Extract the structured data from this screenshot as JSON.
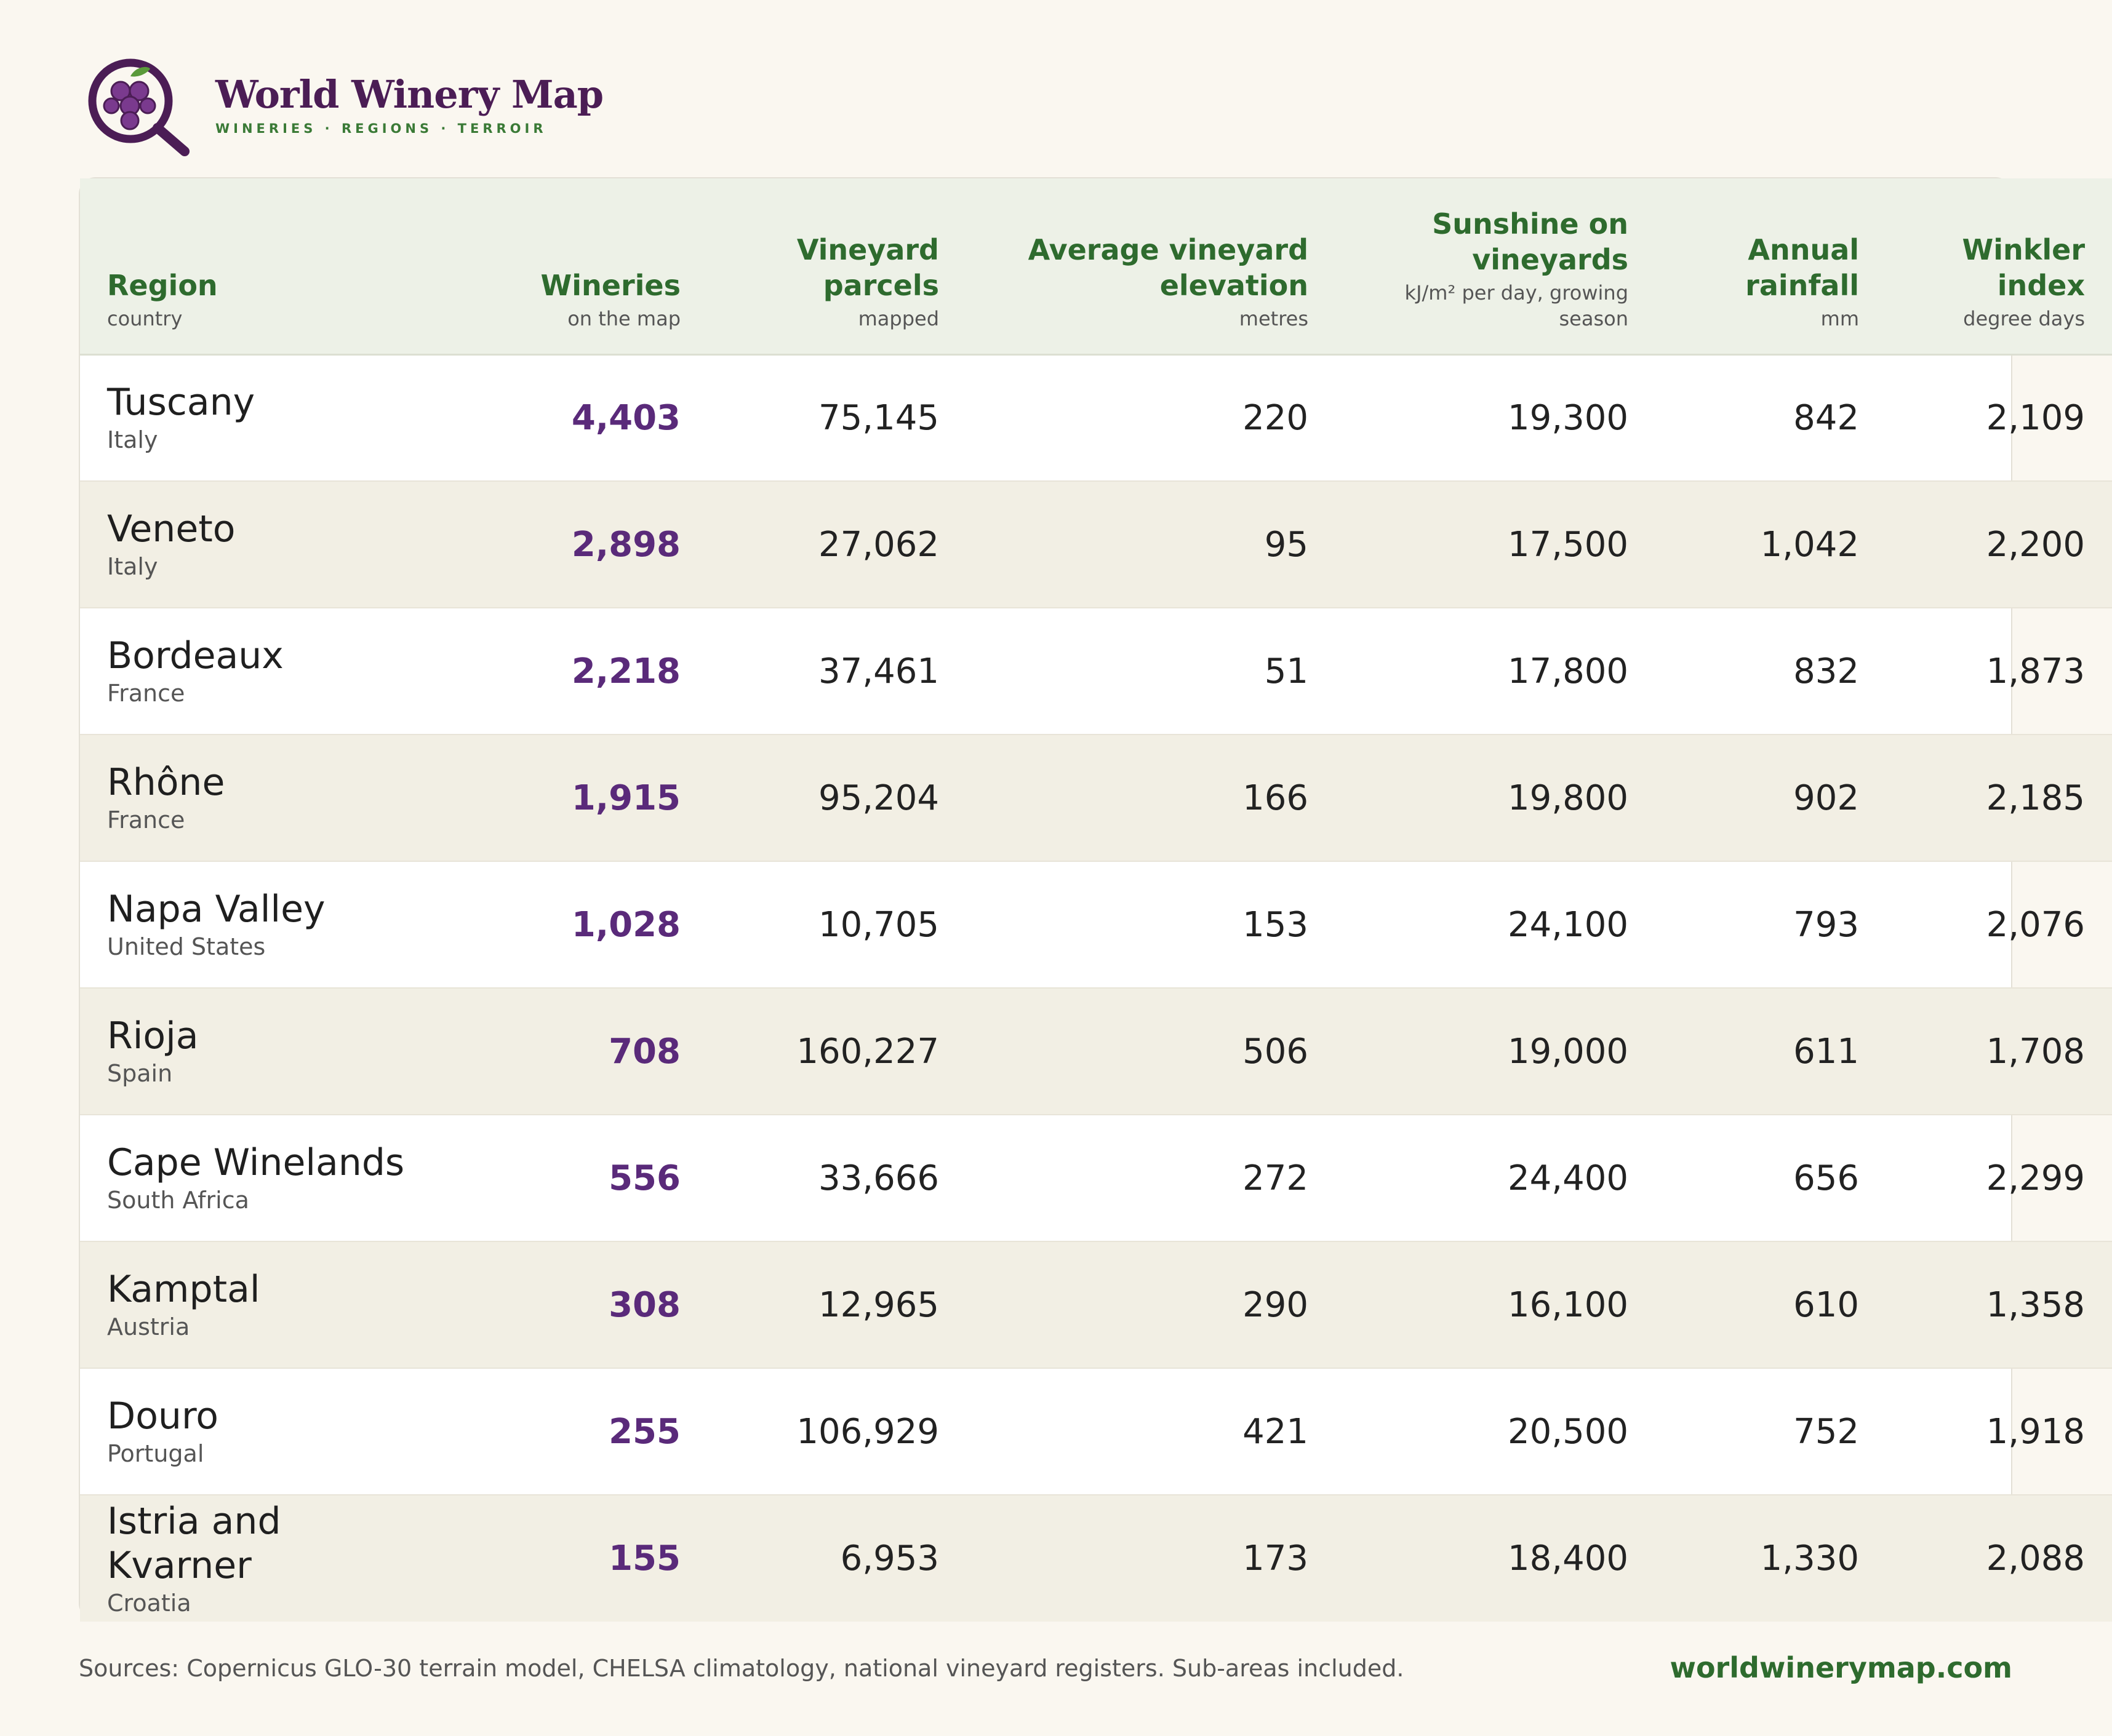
{
  "brand": {
    "title": "World Winery Map",
    "tagline": "WINERIES · REGIONS · TERROIR",
    "logo_icon": "grape-magnifier-icon",
    "colors": {
      "purple": "#4b1d55",
      "green": "#3a7a36"
    }
  },
  "table": {
    "columns": [
      {
        "label": "Region",
        "sub": "country"
      },
      {
        "label": "Wineries",
        "sub": "on the map"
      },
      {
        "label": "Vineyard parcels",
        "sub": "mapped"
      },
      {
        "label": "Average vineyard elevation",
        "sub": "metres"
      },
      {
        "label": "Sunshine on vineyards",
        "sub": "kJ/m² per day, growing season"
      },
      {
        "label": "Annual rainfall",
        "sub": "mm"
      },
      {
        "label": "Winkler index",
        "sub": "degree days"
      }
    ],
    "rows": [
      {
        "region": "Tuscany",
        "country": "Italy",
        "wineries": "4,403",
        "parcels": "75,145",
        "elevation": "220",
        "sunshine": "19,300",
        "rainfall": "842",
        "winkler": "2,109"
      },
      {
        "region": "Veneto",
        "country": "Italy",
        "wineries": "2,898",
        "parcels": "27,062",
        "elevation": "95",
        "sunshine": "17,500",
        "rainfall": "1,042",
        "winkler": "2,200"
      },
      {
        "region": "Bordeaux",
        "country": "France",
        "wineries": "2,218",
        "parcels": "37,461",
        "elevation": "51",
        "sunshine": "17,800",
        "rainfall": "832",
        "winkler": "1,873"
      },
      {
        "region": "Rhône",
        "country": "France",
        "wineries": "1,915",
        "parcels": "95,204",
        "elevation": "166",
        "sunshine": "19,800",
        "rainfall": "902",
        "winkler": "2,185"
      },
      {
        "region": "Napa Valley",
        "country": "United States",
        "wineries": "1,028",
        "parcels": "10,705",
        "elevation": "153",
        "sunshine": "24,100",
        "rainfall": "793",
        "winkler": "2,076"
      },
      {
        "region": "Rioja",
        "country": "Spain",
        "wineries": "708",
        "parcels": "160,227",
        "elevation": "506",
        "sunshine": "19,000",
        "rainfall": "611",
        "winkler": "1,708"
      },
      {
        "region": "Cape Winelands",
        "country": "South Africa",
        "wineries": "556",
        "parcels": "33,666",
        "elevation": "272",
        "sunshine": "24,400",
        "rainfall": "656",
        "winkler": "2,299"
      },
      {
        "region": "Kamptal",
        "country": "Austria",
        "wineries": "308",
        "parcels": "12,965",
        "elevation": "290",
        "sunshine": "16,100",
        "rainfall": "610",
        "winkler": "1,358"
      },
      {
        "region": "Douro",
        "country": "Portugal",
        "wineries": "255",
        "parcels": "106,929",
        "elevation": "421",
        "sunshine": "20,500",
        "rainfall": "752",
        "winkler": "1,918"
      },
      {
        "region": "Istria and Kvarner",
        "country": "Croatia",
        "wineries": "155",
        "parcels": "6,953",
        "elevation": "173",
        "sunshine": "18,400",
        "rainfall": "1,330",
        "winkler": "2,088"
      }
    ]
  },
  "footer": {
    "sources": "Sources: Copernicus GLO-30 terrain model, CHELSA climatology, national vineyard registers. Sub-areas included.",
    "url": "worldwinerymap.com"
  }
}
